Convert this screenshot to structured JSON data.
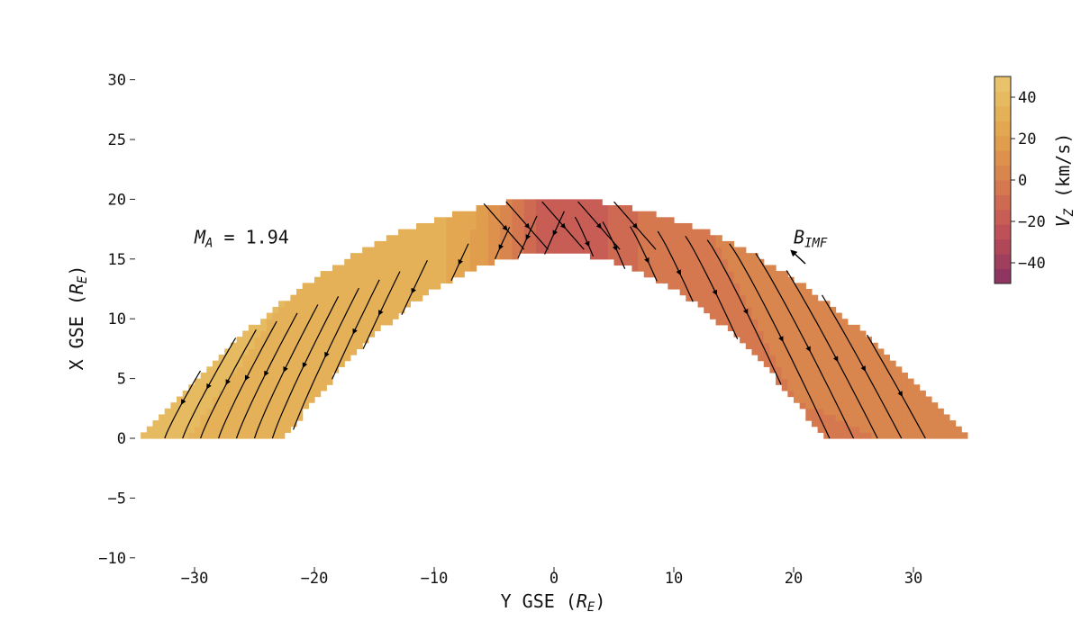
{
  "chart_data": {
    "type": "heatmap",
    "title": "",
    "xlabel": "Y GSE (R_E)",
    "ylabel": "X GSE (R_E)",
    "xlabel_main": "Y GSE (",
    "xlabel_sym": "R",
    "xlabel_sub": "E",
    "xlabel_close": ")",
    "ylabel_main": "X GSE (",
    "ylabel_sym": "R",
    "ylabel_sub": "E",
    "ylabel_close": ")",
    "xlim": [
      -34.5,
      34.5
    ],
    "ylim": [
      -10,
      31
    ],
    "xticks": [
      -30,
      -20,
      -10,
      0,
      10,
      20,
      30
    ],
    "yticks": [
      -10,
      -5,
      0,
      5,
      10,
      15,
      20,
      25,
      30
    ],
    "grid": false,
    "annotations": {
      "mach": {
        "sym": "M",
        "sub": "A",
        "text": " = 1.94",
        "x": -30,
        "y": 16.3
      },
      "bimf": {
        "sym": "B",
        "sub": "IMF",
        "x": 20,
        "y": 16.3
      }
    },
    "region": {
      "description": "magnetosheath band colored by Vz",
      "inner_boundary": {
        "nose": 15.5,
        "flank_y_at_x0": 22.5
      },
      "outer_boundary": {
        "nose": 20.0,
        "flank_y_at_x0": 34.5
      }
    },
    "vz_profile": {
      "y": [
        -34,
        -25,
        -15,
        -10,
        -7,
        -4,
        -2,
        0,
        3,
        6,
        10,
        20,
        34
      ],
      "vz": [
        38,
        36,
        34,
        31,
        22,
        2,
        -12,
        -22,
        -22,
        -10,
        -2,
        1,
        2
      ]
    },
    "streamlines": {
      "x_flank": [
        -32.5,
        -31,
        -29.5,
        -28,
        -26.5,
        -25,
        -23.5,
        -22,
        -20.5,
        -19,
        -17,
        -14,
        -11,
        -9,
        -7,
        -5,
        -3,
        0,
        3,
        6,
        9,
        11.5,
        14,
        16.5,
        19,
        21,
        23,
        25,
        27,
        29,
        31
      ],
      "direction": "flow toward -X on dawn flank, toward +Y on dusk flank"
    },
    "colorbar": {
      "label_sym": "V",
      "label_sub": "Z",
      "label_rest": " (km/s)",
      "label": "V_Z (km/s)",
      "min": -50,
      "max": 50,
      "ticks": [
        -40,
        -20,
        0,
        20,
        40
      ],
      "levels": 14,
      "colors": [
        "#8f3561",
        "#a03e5d",
        "#b04759",
        "#bd5157",
        "#c75d55",
        "#cf6a52",
        "#d5784f",
        "#d9854e",
        "#dd914c",
        "#e09d4d",
        "#e2a750",
        "#e4b158",
        "#e6ba61",
        "#e8c36b"
      ]
    }
  }
}
